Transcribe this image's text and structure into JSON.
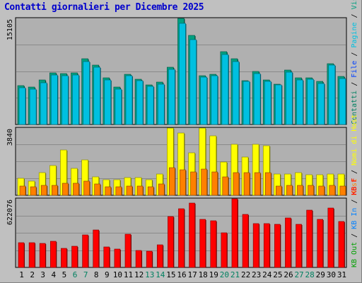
{
  "chart_data": {
    "type": "bar",
    "title": "Contatti giornalieri per Dicembre 2025",
    "categories": [
      "1",
      "2",
      "3",
      "4",
      "5",
      "6",
      "7",
      "8",
      "9",
      "10",
      "11",
      "12",
      "13",
      "14",
      "15",
      "16",
      "17",
      "18",
      "19",
      "20",
      "21",
      "22",
      "23",
      "24",
      "25",
      "26",
      "27",
      "28",
      "29",
      "30",
      "31"
    ],
    "weekend_days": [
      "6",
      "7",
      "13",
      "14",
      "20",
      "21",
      "27",
      "28"
    ],
    "panels": [
      {
        "ymax_label": "15105",
        "ylim": [
          0,
          15105
        ],
        "series": [
          {
            "name": "Visite",
            "color": "#00a080",
            "values": [
              5540,
              5290,
              6330,
              7390,
              7240,
              7400,
              9380,
              8460,
              6660,
              5290,
              7120,
              6450,
              5610,
              6020,
              8130,
              15105,
              12700,
              6970,
              7170,
              10340,
              9350,
              6270,
              7560,
              6380,
              5770,
              7770,
              6640,
              6660,
              6130,
              8640,
              6860
            ]
          },
          {
            "name": "Pagine",
            "color": "#00c0e0",
            "values": [
              5230,
              5020,
              5900,
              7040,
              6940,
              7070,
              9010,
              8200,
              6380,
              5080,
              6900,
              6230,
              5390,
              5730,
              7830,
              14450,
              12070,
              6750,
              6910,
              9940,
              8970,
              6100,
              7250,
              6130,
              5620,
              7450,
              6310,
              6420,
              5880,
              8420,
              6550
            ]
          },
          {
            "name": "File",
            "color": "#0040ff",
            "values": []
          }
        ]
      },
      {
        "ymax_label": "3840",
        "ylim": [
          0,
          3840
        ],
        "series": [
          {
            "name": "Nomi di Host",
            "color": "#ffff00",
            "values": [
              980,
              820,
              1280,
              1680,
              2580,
              1540,
              2040,
              1040,
              880,
              880,
              1010,
              1010,
              890,
              1210,
              3840,
              3560,
              2440,
              3840,
              3410,
              1910,
              2900,
              2200,
              2900,
              2840,
              1200,
              1200,
              1310,
              1180,
              1180,
              1200,
              1200
            ]
          },
          {
            "name": "Host",
            "color": "#ff8000",
            "values": [
              520,
              490,
              560,
              580,
              680,
              700,
              800,
              650,
              500,
              470,
              520,
              520,
              490,
              640,
              1560,
              1460,
              1350,
              1500,
              1350,
              1070,
              1300,
              1300,
              1300,
              1280,
              540,
              560,
              560,
              560,
              540,
              560,
              520
            ]
          }
        ]
      },
      {
        "ymax_label": "622076",
        "ylim": [
          0,
          622076
        ],
        "series": [
          {
            "name": "KB F",
            "color": "#ff0000",
            "values": [
              222000,
              222000,
              217000,
              236000,
              170000,
              192000,
              293000,
              338000,
              189000,
              166000,
              303000,
              151000,
              146000,
              205000,
              460000,
              535000,
              581000,
              433000,
              422000,
              314000,
              622076,
              484000,
              397000,
              397000,
              389000,
              452000,
              389000,
              521000,
              439000,
              537000,
              419000
            ]
          },
          {
            "name": "KB In",
            "color": "#0080ff",
            "values": []
          },
          {
            "name": "KB Out",
            "color": "#00a000",
            "values": []
          }
        ]
      }
    ],
    "legend_placement": "right (vertical)"
  }
}
